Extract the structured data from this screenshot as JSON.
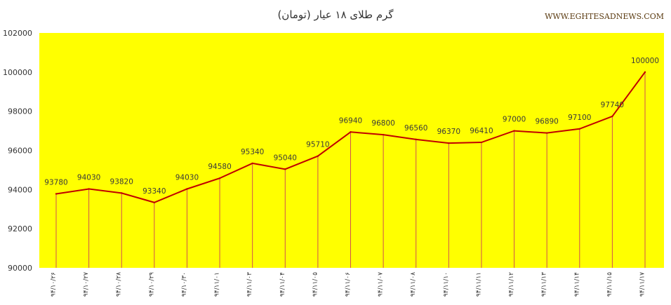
{
  "header": {
    "title": "گرم طلای ۱۸ عیار (تومان)",
    "source": "WWW.EGHTESADNEWS.COM"
  },
  "colors": {
    "plot_background": "#ffff00",
    "line": "#c00000",
    "drop_lines": "#d05050",
    "page_background": "#ffffff"
  },
  "chart_data": {
    "type": "line",
    "title": "گرم طلای ۱۸ عیار (تومان)",
    "categories": [
      "۹۴/۱۰/۲۶",
      "۹۴/۱۰/۲۷",
      "۹۴/۱۰/۲۸",
      "۹۴/۱۰/۲۹",
      "۹۴/۱۰/۳۰",
      "۹۴/۱۱/۰۱",
      "۹۴/۱۱/۰۳",
      "۹۴/۱۱/۰۴",
      "۹۴/۱۱/۰۵",
      "۹۴/۱۱/۰۶",
      "۹۴/۱۱/۰۷",
      "۹۴/۱۱/۰۸",
      "۹۴/۱۱/۱۰",
      "۹۴/۱۱/۱۱",
      "۹۴/۱۱/۱۲",
      "۹۴/۱۱/۱۳",
      "۹۴/۱۱/۱۴",
      "۹۴/۱۱/۱۵",
      "۹۴/۱۱/۱۷"
    ],
    "values": [
      93780,
      94030,
      93820,
      93340,
      94030,
      94580,
      95340,
      95040,
      95710,
      96940,
      96800,
      96560,
      96370,
      96410,
      97000,
      96890,
      97100,
      97740,
      100000
    ],
    "yticks": [
      90000,
      92000,
      94000,
      96000,
      98000,
      100000,
      102000
    ],
    "ylim": [
      90000,
      102000
    ],
    "xlabel": "",
    "ylabel": "",
    "grid": false,
    "drop_lines": true,
    "data_labels": true,
    "legend": "none"
  }
}
